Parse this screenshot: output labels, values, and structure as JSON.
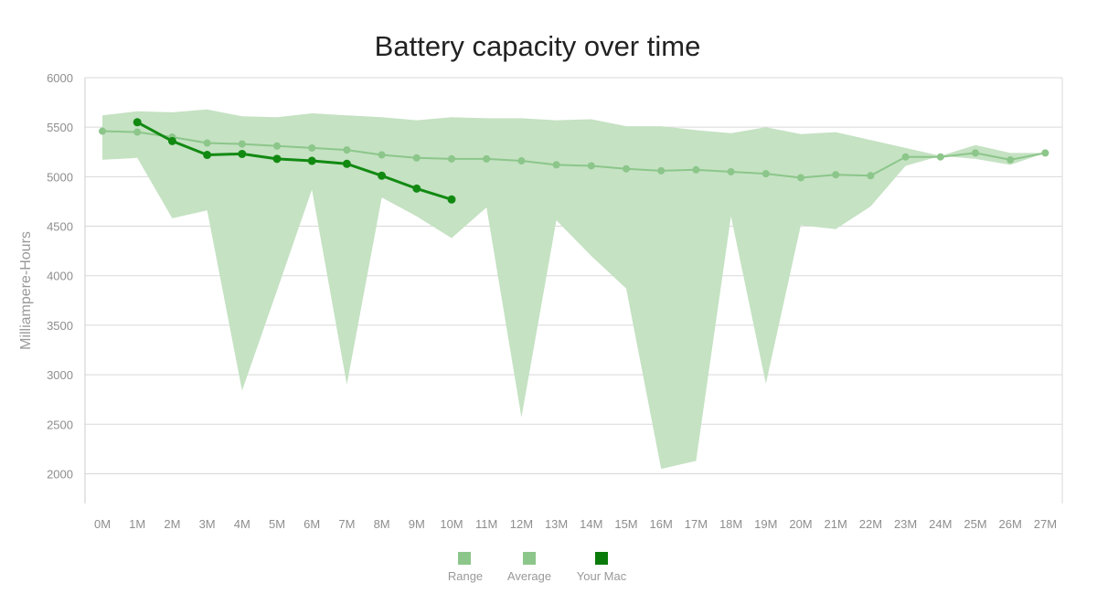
{
  "chart_data": {
    "type": "area",
    "title": "Battery capacity over time",
    "ylabel": "Milliampere-Hours",
    "xlabel": "",
    "ylim": [
      1700,
      6000
    ],
    "y_ticks": [
      "2000",
      "2500",
      "3000",
      "3500",
      "4000",
      "4500",
      "5000",
      "5500",
      "6000"
    ],
    "categories": [
      "0M",
      "1M",
      "2M",
      "3M",
      "4M",
      "5M",
      "6M",
      "7M",
      "8M",
      "9M",
      "10M",
      "11M",
      "12M",
      "13M",
      "14M",
      "15M",
      "16M",
      "17M",
      "18M",
      "19M",
      "20M",
      "21M",
      "22M",
      "23M",
      "24M",
      "25M",
      "26M",
      "27M"
    ],
    "series": [
      {
        "name": "Range",
        "kind": "band",
        "color": "#c5e2c3",
        "upper": [
          5620,
          5660,
          5650,
          5680,
          5610,
          5600,
          5640,
          5620,
          5600,
          5570,
          5600,
          5590,
          5590,
          5570,
          5580,
          5510,
          5510,
          5470,
          5440,
          5500,
          5430,
          5450,
          5370,
          5290,
          5210,
          5320,
          5240,
          5240
        ],
        "lower": [
          5170,
          5190,
          4580,
          4660,
          2840,
          3850,
          4870,
          2900,
          4790,
          4600,
          4380,
          4690,
          2570,
          4560,
          4200,
          3870,
          2050,
          2130,
          4600,
          2910,
          4510,
          4470,
          4700,
          5110,
          5210,
          5180,
          5120,
          5240
        ]
      },
      {
        "name": "Average",
        "kind": "line",
        "color": "#8cc68a",
        "values": [
          5460,
          5450,
          5400,
          5340,
          5330,
          5310,
          5290,
          5270,
          5220,
          5190,
          5180,
          5180,
          5160,
          5120,
          5110,
          5080,
          5060,
          5070,
          5050,
          5030,
          4990,
          5020,
          5010,
          5200,
          5200,
          5240,
          5170,
          5240
        ]
      },
      {
        "name": "Your Mac",
        "kind": "line",
        "color": "#128a12",
        "values": [
          null,
          5550,
          5360,
          5220,
          5230,
          5180,
          5160,
          5130,
          5010,
          4880,
          4770,
          null,
          null,
          null,
          null,
          null,
          null,
          null,
          null,
          null,
          null,
          null,
          null,
          null,
          null,
          null,
          null,
          null
        ]
      }
    ],
    "legend": {
      "position": "bottom-center",
      "items": [
        {
          "label": "Range",
          "color": "#8cc68a"
        },
        {
          "label": "Average",
          "color": "#8cc68a"
        },
        {
          "label": "Your Mac",
          "color": "#0a7a0a"
        }
      ]
    },
    "grid": true
  }
}
